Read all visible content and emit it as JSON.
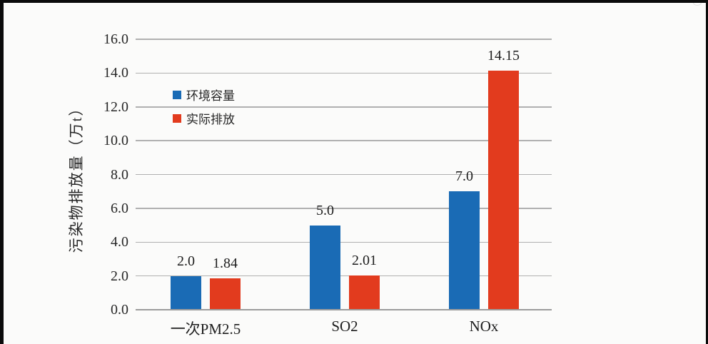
{
  "page": {
    "background": "#fbfbfa",
    "frame_color": "#0b0b0b"
  },
  "chart_data": {
    "type": "bar",
    "title": "",
    "categories": [
      "一次PM2.5",
      "SO2",
      "NOx"
    ],
    "series": [
      {
        "name": "环境容量",
        "color": "#1a6bb5",
        "values": [
          2.0,
          5.0,
          7.0
        ],
        "labels": [
          "2.0",
          "5.0",
          "7.0"
        ]
      },
      {
        "name": "实际排放",
        "color": "#e23b1e",
        "values": [
          1.84,
          2.01,
          14.15
        ],
        "labels": [
          "1.84",
          "2.01",
          "14.15"
        ]
      }
    ],
    "ylabel": "污染物排放量（万t）",
    "ylim": [
      0,
      16
    ],
    "ytick_step": 2,
    "ytick_labels": [
      "0.0",
      "2.0",
      "4.0",
      "6.0",
      "8.0",
      "10.0",
      "12.0",
      "14.0",
      "16.0"
    ],
    "grid": true,
    "legend_position": "inside-top-left",
    "gridline_color": "#b0b0b0",
    "axis_color": "#9c9c9c"
  }
}
